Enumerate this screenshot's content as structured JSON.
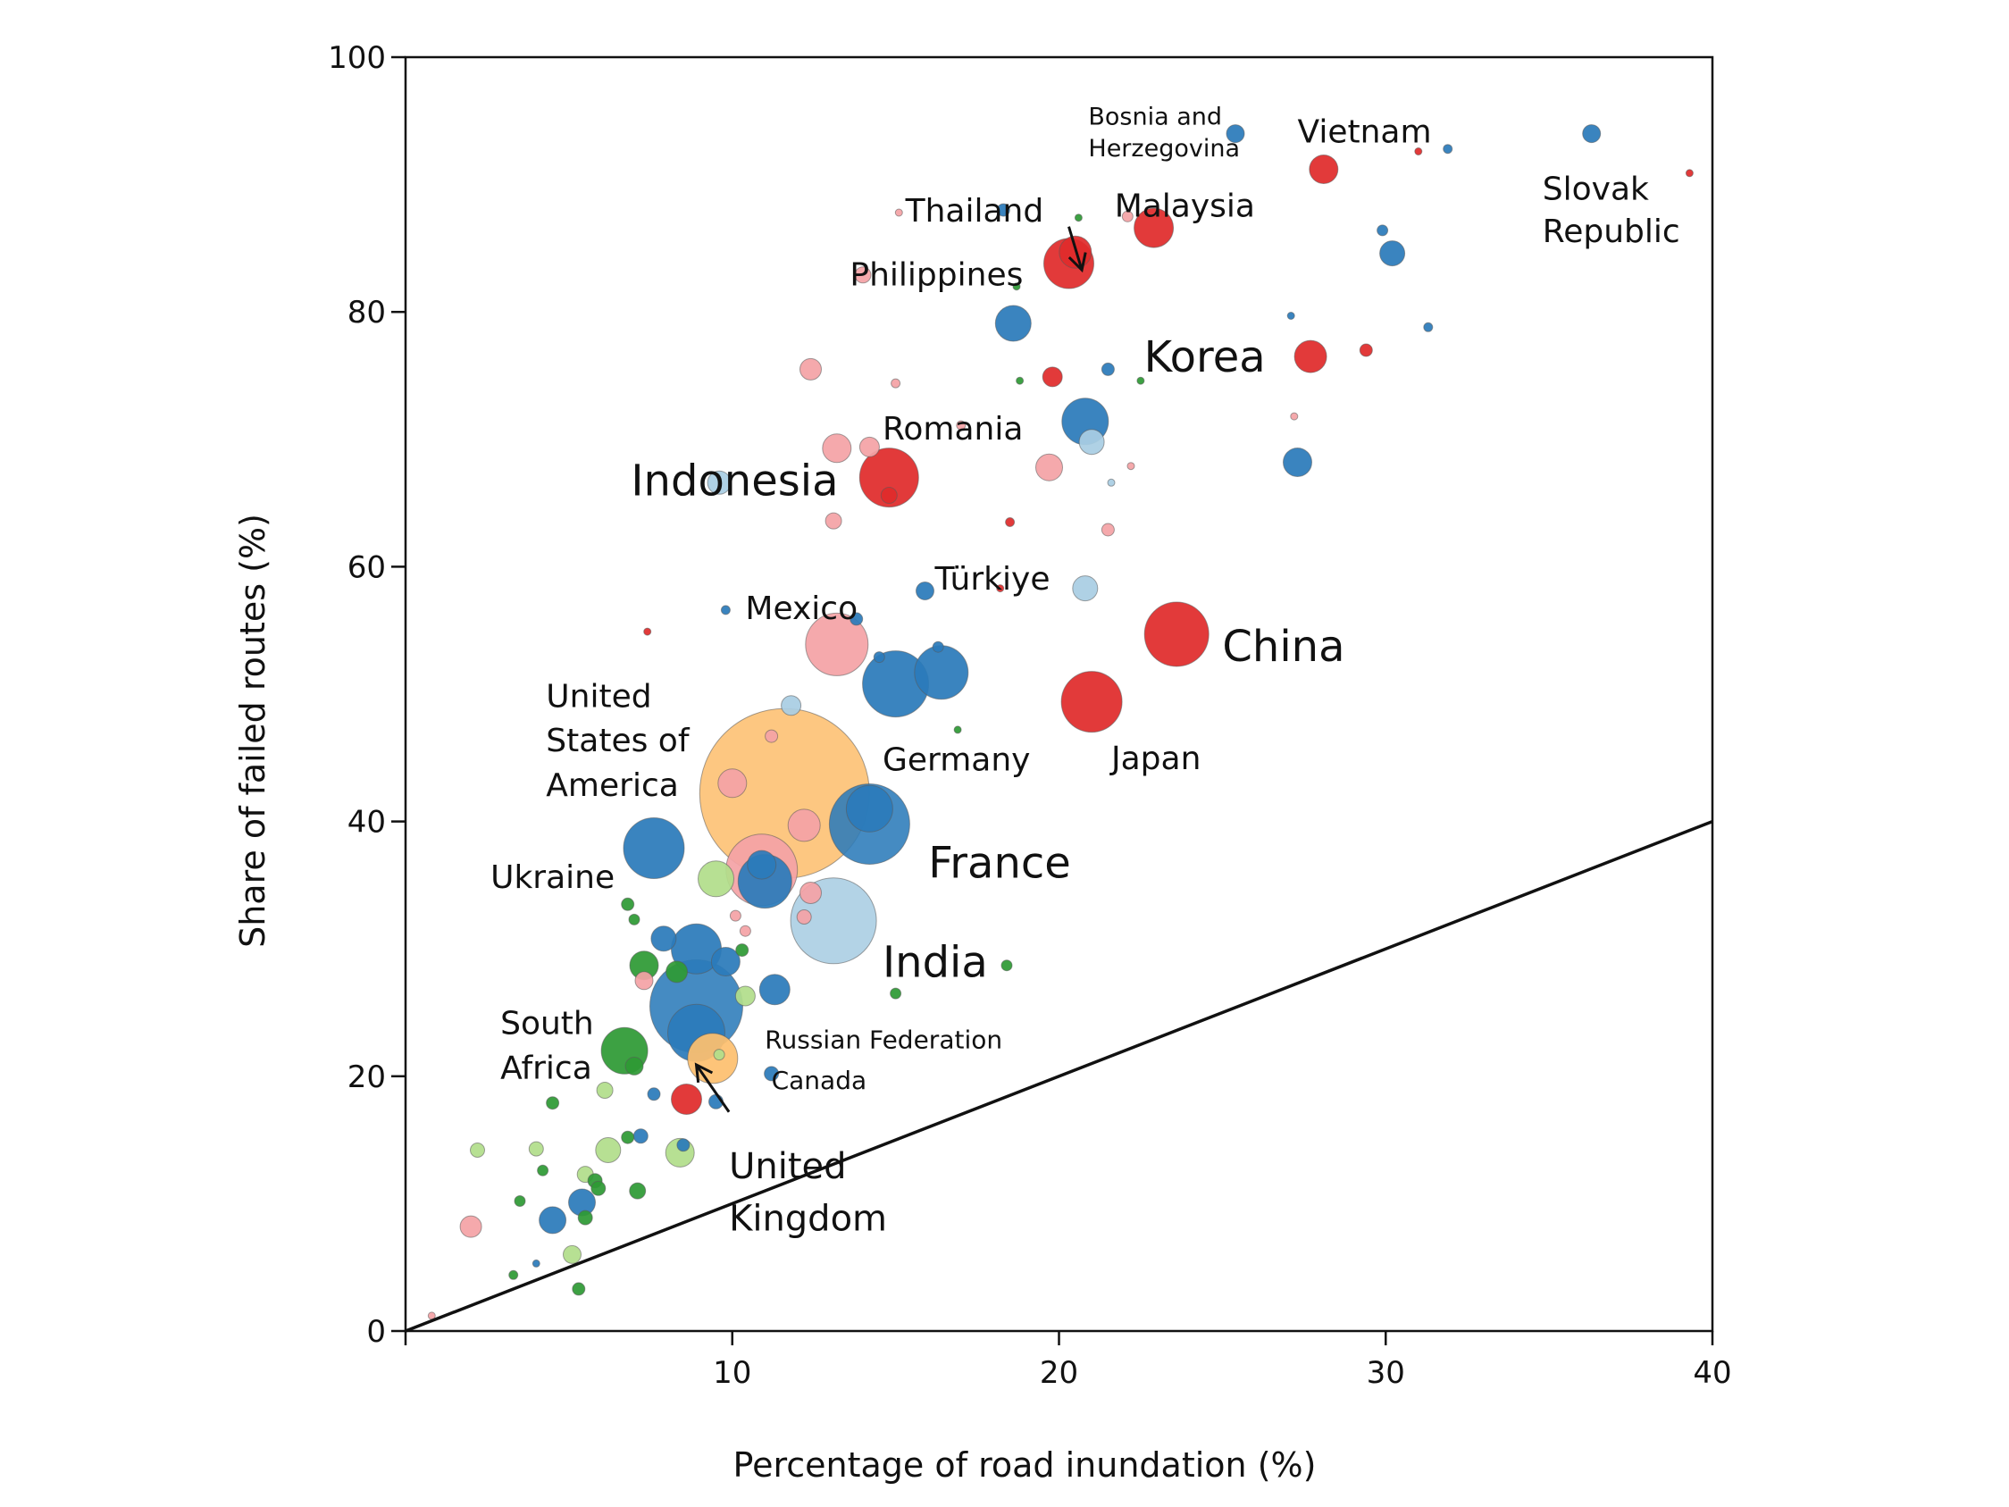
{
  "chart_data": {
    "type": "scatter",
    "title": "",
    "xlabel": "Percentage of road inundation (%)",
    "ylabel": "Share of failed routes (%)",
    "xlim": [
      0,
      40
    ],
    "ylim": [
      0,
      100
    ],
    "x_ticks": [
      10,
      20,
      30,
      40
    ],
    "y_ticks": [
      0,
      20,
      40,
      60,
      80,
      100
    ],
    "x_tick_labels": [
      "10",
      "20",
      "30",
      "40"
    ],
    "y_tick_labels": [
      "0",
      "20",
      "40",
      "60",
      "80",
      "100"
    ],
    "grid": false,
    "reference_line": {
      "x": [
        0,
        40
      ],
      "y": [
        0,
        40
      ]
    },
    "palette": {
      "dark_red": "#e02b2b",
      "light_red": "#f4a3a6",
      "dark_blue": "#2b7bba",
      "light_blue": "#a9cde3",
      "dark_green": "#2e9a35",
      "light_green": "#b2de8b",
      "orange": "#fdbf6f"
    },
    "points": [
      {
        "x": 11.6,
        "y": 42.2,
        "size": 95,
        "color": "orange"
      },
      {
        "x": 14.2,
        "y": 39.8,
        "size": 45,
        "color": "dark_blue"
      },
      {
        "x": 14.2,
        "y": 41.0,
        "size": 26,
        "color": "dark_blue"
      },
      {
        "x": 13.1,
        "y": 32.2,
        "size": 48,
        "color": "light_blue"
      },
      {
        "x": 8.9,
        "y": 25.5,
        "size": 52,
        "color": "dark_blue"
      },
      {
        "x": 8.9,
        "y": 30.0,
        "size": 28,
        "color": "dark_blue"
      },
      {
        "x": 8.9,
        "y": 23.4,
        "size": 32,
        "color": "dark_blue"
      },
      {
        "x": 9.4,
        "y": 21.4,
        "size": 28,
        "color": "orange"
      },
      {
        "x": 10.9,
        "y": 36.2,
        "size": 40,
        "color": "light_red"
      },
      {
        "x": 11.0,
        "y": 35.3,
        "size": 30,
        "color": "dark_blue"
      },
      {
        "x": 10.9,
        "y": 36.6,
        "size": 16,
        "color": "dark_blue"
      },
      {
        "x": 7.6,
        "y": 37.9,
        "size": 34,
        "color": "dark_blue"
      },
      {
        "x": 9.5,
        "y": 35.5,
        "size": 20,
        "color": "light_green"
      },
      {
        "x": 23.6,
        "y": 54.7,
        "size": 36,
        "color": "dark_red"
      },
      {
        "x": 21.0,
        "y": 49.4,
        "size": 34,
        "color": "dark_red"
      },
      {
        "x": 15.0,
        "y": 50.8,
        "size": 37,
        "color": "dark_blue"
      },
      {
        "x": 16.4,
        "y": 51.7,
        "size": 30,
        "color": "dark_blue"
      },
      {
        "x": 13.2,
        "y": 53.9,
        "size": 35,
        "color": "light_red"
      },
      {
        "x": 14.8,
        "y": 67.0,
        "size": 33,
        "color": "dark_red"
      },
      {
        "x": 20.3,
        "y": 83.8,
        "size": 28,
        "color": "dark_red"
      },
      {
        "x": 20.5,
        "y": 84.7,
        "size": 18,
        "color": "dark_red"
      },
      {
        "x": 22.9,
        "y": 86.6,
        "size": 22,
        "color": "dark_red"
      },
      {
        "x": 28.1,
        "y": 91.2,
        "size": 16,
        "color": "dark_red"
      },
      {
        "x": 27.7,
        "y": 76.5,
        "size": 18,
        "color": "dark_red"
      },
      {
        "x": 29.4,
        "y": 77.0,
        "size": 7,
        "color": "dark_red"
      },
      {
        "x": 20.8,
        "y": 71.4,
        "size": 26,
        "color": "dark_blue"
      },
      {
        "x": 21.0,
        "y": 69.8,
        "size": 14,
        "color": "light_blue"
      },
      {
        "x": 18.6,
        "y": 79.1,
        "size": 20,
        "color": "dark_blue"
      },
      {
        "x": 19.8,
        "y": 74.9,
        "size": 11,
        "color": "dark_red"
      },
      {
        "x": 19.7,
        "y": 67.8,
        "size": 15,
        "color": "light_red"
      },
      {
        "x": 13.2,
        "y": 69.3,
        "size": 16,
        "color": "light_red"
      },
      {
        "x": 14.8,
        "y": 65.6,
        "size": 9,
        "color": "dark_red"
      },
      {
        "x": 14.2,
        "y": 69.4,
        "size": 11,
        "color": "light_red"
      },
      {
        "x": 9.6,
        "y": 66.6,
        "size": 13,
        "color": "light_blue"
      },
      {
        "x": 12.4,
        "y": 75.5,
        "size": 12,
        "color": "light_red"
      },
      {
        "x": 13.1,
        "y": 63.6,
        "size": 9,
        "color": "light_red"
      },
      {
        "x": 27.3,
        "y": 68.2,
        "size": 16,
        "color": "dark_blue"
      },
      {
        "x": 30.2,
        "y": 84.6,
        "size": 14,
        "color": "dark_blue"
      },
      {
        "x": 36.3,
        "y": 94.0,
        "size": 10,
        "color": "dark_blue"
      },
      {
        "x": 25.4,
        "y": 94.0,
        "size": 10,
        "color": "dark_blue"
      },
      {
        "x": 20.8,
        "y": 58.3,
        "size": 14,
        "color": "light_blue"
      },
      {
        "x": 15.9,
        "y": 58.1,
        "size": 10,
        "color": "dark_blue"
      },
      {
        "x": 13.8,
        "y": 55.9,
        "size": 7,
        "color": "dark_blue"
      },
      {
        "x": 11.8,
        "y": 49.1,
        "size": 11,
        "color": "light_blue"
      },
      {
        "x": 10.0,
        "y": 43.0,
        "size": 16,
        "color": "light_red"
      },
      {
        "x": 12.2,
        "y": 39.7,
        "size": 18,
        "color": "light_red"
      },
      {
        "x": 12.4,
        "y": 34.4,
        "size": 12,
        "color": "light_red"
      },
      {
        "x": 9.8,
        "y": 29.0,
        "size": 16,
        "color": "dark_blue"
      },
      {
        "x": 11.3,
        "y": 26.8,
        "size": 17,
        "color": "dark_blue"
      },
      {
        "x": 7.9,
        "y": 30.8,
        "size": 14,
        "color": "dark_blue"
      },
      {
        "x": 7.3,
        "y": 28.7,
        "size": 16,
        "color": "dark_green"
      },
      {
        "x": 8.3,
        "y": 28.2,
        "size": 12,
        "color": "dark_green"
      },
      {
        "x": 6.7,
        "y": 22.0,
        "size": 26,
        "color": "dark_green"
      },
      {
        "x": 7.0,
        "y": 20.8,
        "size": 10,
        "color": "dark_green"
      },
      {
        "x": 8.6,
        "y": 18.2,
        "size": 17,
        "color": "dark_red"
      },
      {
        "x": 8.4,
        "y": 14.0,
        "size": 16,
        "color": "light_green"
      },
      {
        "x": 8.5,
        "y": 14.6,
        "size": 7,
        "color": "dark_blue"
      },
      {
        "x": 6.2,
        "y": 14.2,
        "size": 14,
        "color": "light_green"
      },
      {
        "x": 5.4,
        "y": 10.1,
        "size": 15,
        "color": "dark_blue"
      },
      {
        "x": 4.5,
        "y": 8.7,
        "size": 15,
        "color": "dark_blue"
      },
      {
        "x": 2.0,
        "y": 8.2,
        "size": 12,
        "color": "light_red"
      },
      {
        "x": 2.2,
        "y": 14.2,
        "size": 8,
        "color": "light_green"
      },
      {
        "x": 10.4,
        "y": 26.3,
        "size": 11,
        "color": "light_green"
      },
      {
        "x": 6.8,
        "y": 33.5,
        "size": 7,
        "color": "dark_green"
      },
      {
        "x": 7.0,
        "y": 32.3,
        "size": 6,
        "color": "dark_green"
      },
      {
        "x": 11.2,
        "y": 20.2,
        "size": 8,
        "color": "dark_blue"
      },
      {
        "x": 9.5,
        "y": 18.0,
        "size": 8,
        "color": "dark_blue"
      },
      {
        "x": 7.6,
        "y": 18.6,
        "size": 7,
        "color": "dark_blue"
      },
      {
        "x": 6.8,
        "y": 15.2,
        "size": 7,
        "color": "dark_green"
      },
      {
        "x": 7.2,
        "y": 15.3,
        "size": 8,
        "color": "dark_blue"
      },
      {
        "x": 6.1,
        "y": 18.9,
        "size": 9,
        "color": "light_green"
      },
      {
        "x": 5.5,
        "y": 12.3,
        "size": 9,
        "color": "light_green"
      },
      {
        "x": 5.8,
        "y": 11.8,
        "size": 8,
        "color": "dark_green"
      },
      {
        "x": 5.9,
        "y": 11.2,
        "size": 8,
        "color": "dark_green"
      },
      {
        "x": 7.1,
        "y": 11.0,
        "size": 9,
        "color": "dark_green"
      },
      {
        "x": 5.5,
        "y": 8.9,
        "size": 8,
        "color": "dark_green"
      },
      {
        "x": 5.1,
        "y": 6.0,
        "size": 10,
        "color": "light_green"
      },
      {
        "x": 5.3,
        "y": 3.3,
        "size": 7,
        "color": "dark_green"
      },
      {
        "x": 4.0,
        "y": 14.3,
        "size": 8,
        "color": "light_green"
      },
      {
        "x": 4.5,
        "y": 17.9,
        "size": 7,
        "color": "dark_green"
      },
      {
        "x": 3.5,
        "y": 10.2,
        "size": 6,
        "color": "dark_green"
      },
      {
        "x": 4.2,
        "y": 12.6,
        "size": 6,
        "color": "dark_green"
      },
      {
        "x": 3.3,
        "y": 4.4,
        "size": 5,
        "color": "dark_green"
      },
      {
        "x": 10.3,
        "y": 29.9,
        "size": 7,
        "color": "dark_green"
      },
      {
        "x": 15.0,
        "y": 26.5,
        "size": 6,
        "color": "dark_green"
      },
      {
        "x": 18.4,
        "y": 28.7,
        "size": 6,
        "color": "dark_green"
      },
      {
        "x": 12.2,
        "y": 32.5,
        "size": 8,
        "color": "light_red"
      },
      {
        "x": 10.1,
        "y": 32.6,
        "size": 6,
        "color": "light_red"
      },
      {
        "x": 14.0,
        "y": 82.9,
        "size": 9,
        "color": "light_red"
      },
      {
        "x": 18.3,
        "y": 88.0,
        "size": 7,
        "color": "dark_blue"
      },
      {
        "x": 22.1,
        "y": 87.5,
        "size": 6,
        "color": "light_red"
      },
      {
        "x": 21.5,
        "y": 75.5,
        "size": 7,
        "color": "dark_blue"
      },
      {
        "x": 21.5,
        "y": 62.9,
        "size": 7,
        "color": "light_red"
      },
      {
        "x": 29.9,
        "y": 86.4,
        "size": 6,
        "color": "dark_blue"
      },
      {
        "x": 31.9,
        "y": 92.8,
        "size": 5,
        "color": "dark_blue"
      },
      {
        "x": 31.3,
        "y": 78.8,
        "size": 5,
        "color": "dark_blue"
      },
      {
        "x": 15.0,
        "y": 74.4,
        "size": 5,
        "color": "light_red"
      },
      {
        "x": 18.7,
        "y": 82.0,
        "size": 4,
        "color": "dark_green"
      },
      {
        "x": 16.3,
        "y": 53.7,
        "size": 6,
        "color": "dark_blue"
      },
      {
        "x": 14.5,
        "y": 52.9,
        "size": 6,
        "color": "dark_blue"
      },
      {
        "x": 18.5,
        "y": 63.5,
        "size": 5,
        "color": "dark_red"
      },
      {
        "x": 9.8,
        "y": 56.6,
        "size": 5,
        "color": "dark_blue"
      },
      {
        "x": 7.4,
        "y": 54.9,
        "size": 4,
        "color": "dark_red"
      },
      {
        "x": 11.2,
        "y": 46.7,
        "size": 7,
        "color": "light_red"
      },
      {
        "x": 16.9,
        "y": 47.2,
        "size": 4,
        "color": "dark_green"
      },
      {
        "x": 10.4,
        "y": 31.4,
        "size": 6,
        "color": "light_red"
      },
      {
        "x": 9.6,
        "y": 21.7,
        "size": 6,
        "color": "light_green"
      },
      {
        "x": 7.3,
        "y": 27.5,
        "size": 10,
        "color": "light_red"
      },
      {
        "x": 4.0,
        "y": 5.3,
        "size": 4,
        "color": "dark_blue"
      },
      {
        "x": 0.8,
        "y": 1.2,
        "size": 4,
        "color": "light_red"
      },
      {
        "x": 39.3,
        "y": 90.9,
        "size": 4,
        "color": "dark_red"
      },
      {
        "x": 31.0,
        "y": 92.6,
        "size": 4,
        "color": "dark_red"
      },
      {
        "x": 27.1,
        "y": 79.7,
        "size": 4,
        "color": "dark_blue"
      },
      {
        "x": 27.2,
        "y": 71.8,
        "size": 4,
        "color": "light_red"
      },
      {
        "x": 22.5,
        "y": 74.6,
        "size": 4,
        "color": "dark_green"
      },
      {
        "x": 22.2,
        "y": 67.9,
        "size": 4,
        "color": "light_red"
      },
      {
        "x": 21.6,
        "y": 66.6,
        "size": 4,
        "color": "light_blue"
      },
      {
        "x": 18.2,
        "y": 58.3,
        "size": 4,
        "color": "dark_red"
      },
      {
        "x": 17.0,
        "y": 71.1,
        "size": 5,
        "color": "light_red"
      },
      {
        "x": 20.6,
        "y": 87.4,
        "size": 4,
        "color": "dark_green"
      },
      {
        "x": 15.1,
        "y": 87.8,
        "size": 4,
        "color": "light_red"
      },
      {
        "x": 18.8,
        "y": 74.6,
        "size": 4,
        "color": "dark_green"
      }
    ],
    "labels": [
      {
        "text": "Bosnia and",
        "x": 20.9,
        "y": 94.7,
        "font_size": 27
      },
      {
        "text": "Herzegovina",
        "x": 20.9,
        "y": 92.2,
        "font_size": 27
      },
      {
        "text": "Vietnam",
        "x": 27.3,
        "y": 93.3,
        "font_size": 36
      },
      {
        "text": "Slovak",
        "x": 34.8,
        "y": 88.8,
        "font_size": 36
      },
      {
        "text": "Republic",
        "x": 34.8,
        "y": 85.5,
        "font_size": 36
      },
      {
        "text": "Thailand",
        "x": 15.3,
        "y": 87.1,
        "font_size": 36
      },
      {
        "text": "Malaysia",
        "x": 21.7,
        "y": 87.5,
        "font_size": 36
      },
      {
        "text": "Philippines",
        "x": 13.6,
        "y": 82.1,
        "font_size": 36
      },
      {
        "text": "Korea",
        "x": 22.6,
        "y": 75.3,
        "font_size": 48
      },
      {
        "text": "Romania",
        "x": 14.6,
        "y": 70.0,
        "font_size": 36
      },
      {
        "text": "Indonesia",
        "x": 6.9,
        "y": 65.6,
        "font_size": 48
      },
      {
        "text": "Türkiye",
        "x": 16.2,
        "y": 58.2,
        "font_size": 36
      },
      {
        "text": "Mexico",
        "x": 10.4,
        "y": 55.9,
        "font_size": 36
      },
      {
        "text": "China",
        "x": 25.0,
        "y": 52.6,
        "font_size": 48
      },
      {
        "text": "United",
        "x": 4.3,
        "y": 49.0,
        "font_size": 36
      },
      {
        "text": "States of",
        "x": 4.3,
        "y": 45.5,
        "font_size": 36
      },
      {
        "text": "America",
        "x": 4.3,
        "y": 42.0,
        "font_size": 36
      },
      {
        "text": "Germany",
        "x": 14.6,
        "y": 44.0,
        "font_size": 36
      },
      {
        "text": "Japan",
        "x": 21.6,
        "y": 44.1,
        "font_size": 36
      },
      {
        "text": "France",
        "x": 16.0,
        "y": 35.6,
        "font_size": 48
      },
      {
        "text": "Ukraine",
        "x": 2.6,
        "y": 34.8,
        "font_size": 36
      },
      {
        "text": "India",
        "x": 14.6,
        "y": 27.8,
        "font_size": 48
      },
      {
        "text": "South",
        "x": 2.9,
        "y": 23.3,
        "font_size": 36
      },
      {
        "text": "Africa",
        "x": 2.9,
        "y": 19.8,
        "font_size": 36
      },
      {
        "text": "Russian Federation",
        "x": 11.0,
        "y": 22.2,
        "font_size": 28
      },
      {
        "text": "Canada",
        "x": 11.2,
        "y": 19.0,
        "font_size": 28
      },
      {
        "text": "United",
        "x": 9.9,
        "y": 12.0,
        "font_size": 40
      },
      {
        "text": "Kingdom",
        "x": 9.9,
        "y": 7.9,
        "font_size": 40
      }
    ],
    "arrows": [
      {
        "from": [
          20.3,
          86.7
        ],
        "to": [
          20.7,
          83.3
        ]
      },
      {
        "from": [
          9.9,
          17.2
        ],
        "to": [
          8.9,
          20.9
        ]
      }
    ]
  }
}
